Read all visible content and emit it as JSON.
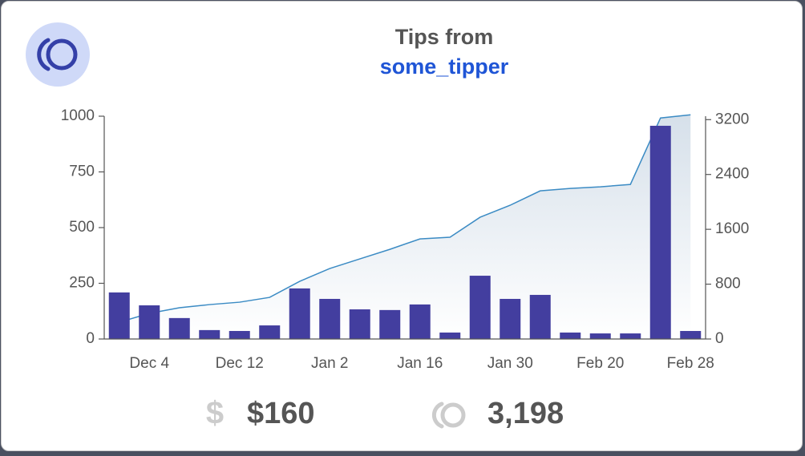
{
  "header": {
    "title": "Tips from",
    "user": "some_tipper"
  },
  "chart_data": {
    "type": "bar",
    "categories": [
      null,
      "Dec 4",
      null,
      null,
      "Dec 12",
      null,
      null,
      "Jan 2",
      null,
      null,
      "Jan 16",
      null,
      null,
      "Jan 30",
      null,
      null,
      "Feb 20",
      null,
      null,
      "Feb 28"
    ],
    "series": [
      {
        "type": "bar",
        "color": "#433e9f",
        "values": [
          209,
          151,
          94,
          40,
          36,
          61,
          227,
          180,
          133,
          130,
          155,
          29,
          284,
          180,
          198,
          29,
          25,
          25,
          957,
          36
        ]
      },
      {
        "type": "line",
        "axis": "y2",
        "color": "#3b8bc4",
        "values": [
          245,
          374,
          456,
          502,
          537,
          607,
          841,
          1028,
          1168,
          1308,
          1460,
          1484,
          1776,
          1951,
          2161,
          2196,
          2220,
          2255,
          3224,
          3270
        ]
      }
    ],
    "ylim": [
      0,
      1000
    ],
    "yticks": [
      0,
      250,
      500,
      750,
      1000
    ],
    "y2lim": [
      0,
      3250
    ],
    "y2ticks": [
      0,
      800,
      1600,
      2400,
      3200
    ]
  },
  "stats": [
    {
      "icon": "$",
      "value": "$160"
    },
    {
      "value": "3,198"
    }
  ]
}
